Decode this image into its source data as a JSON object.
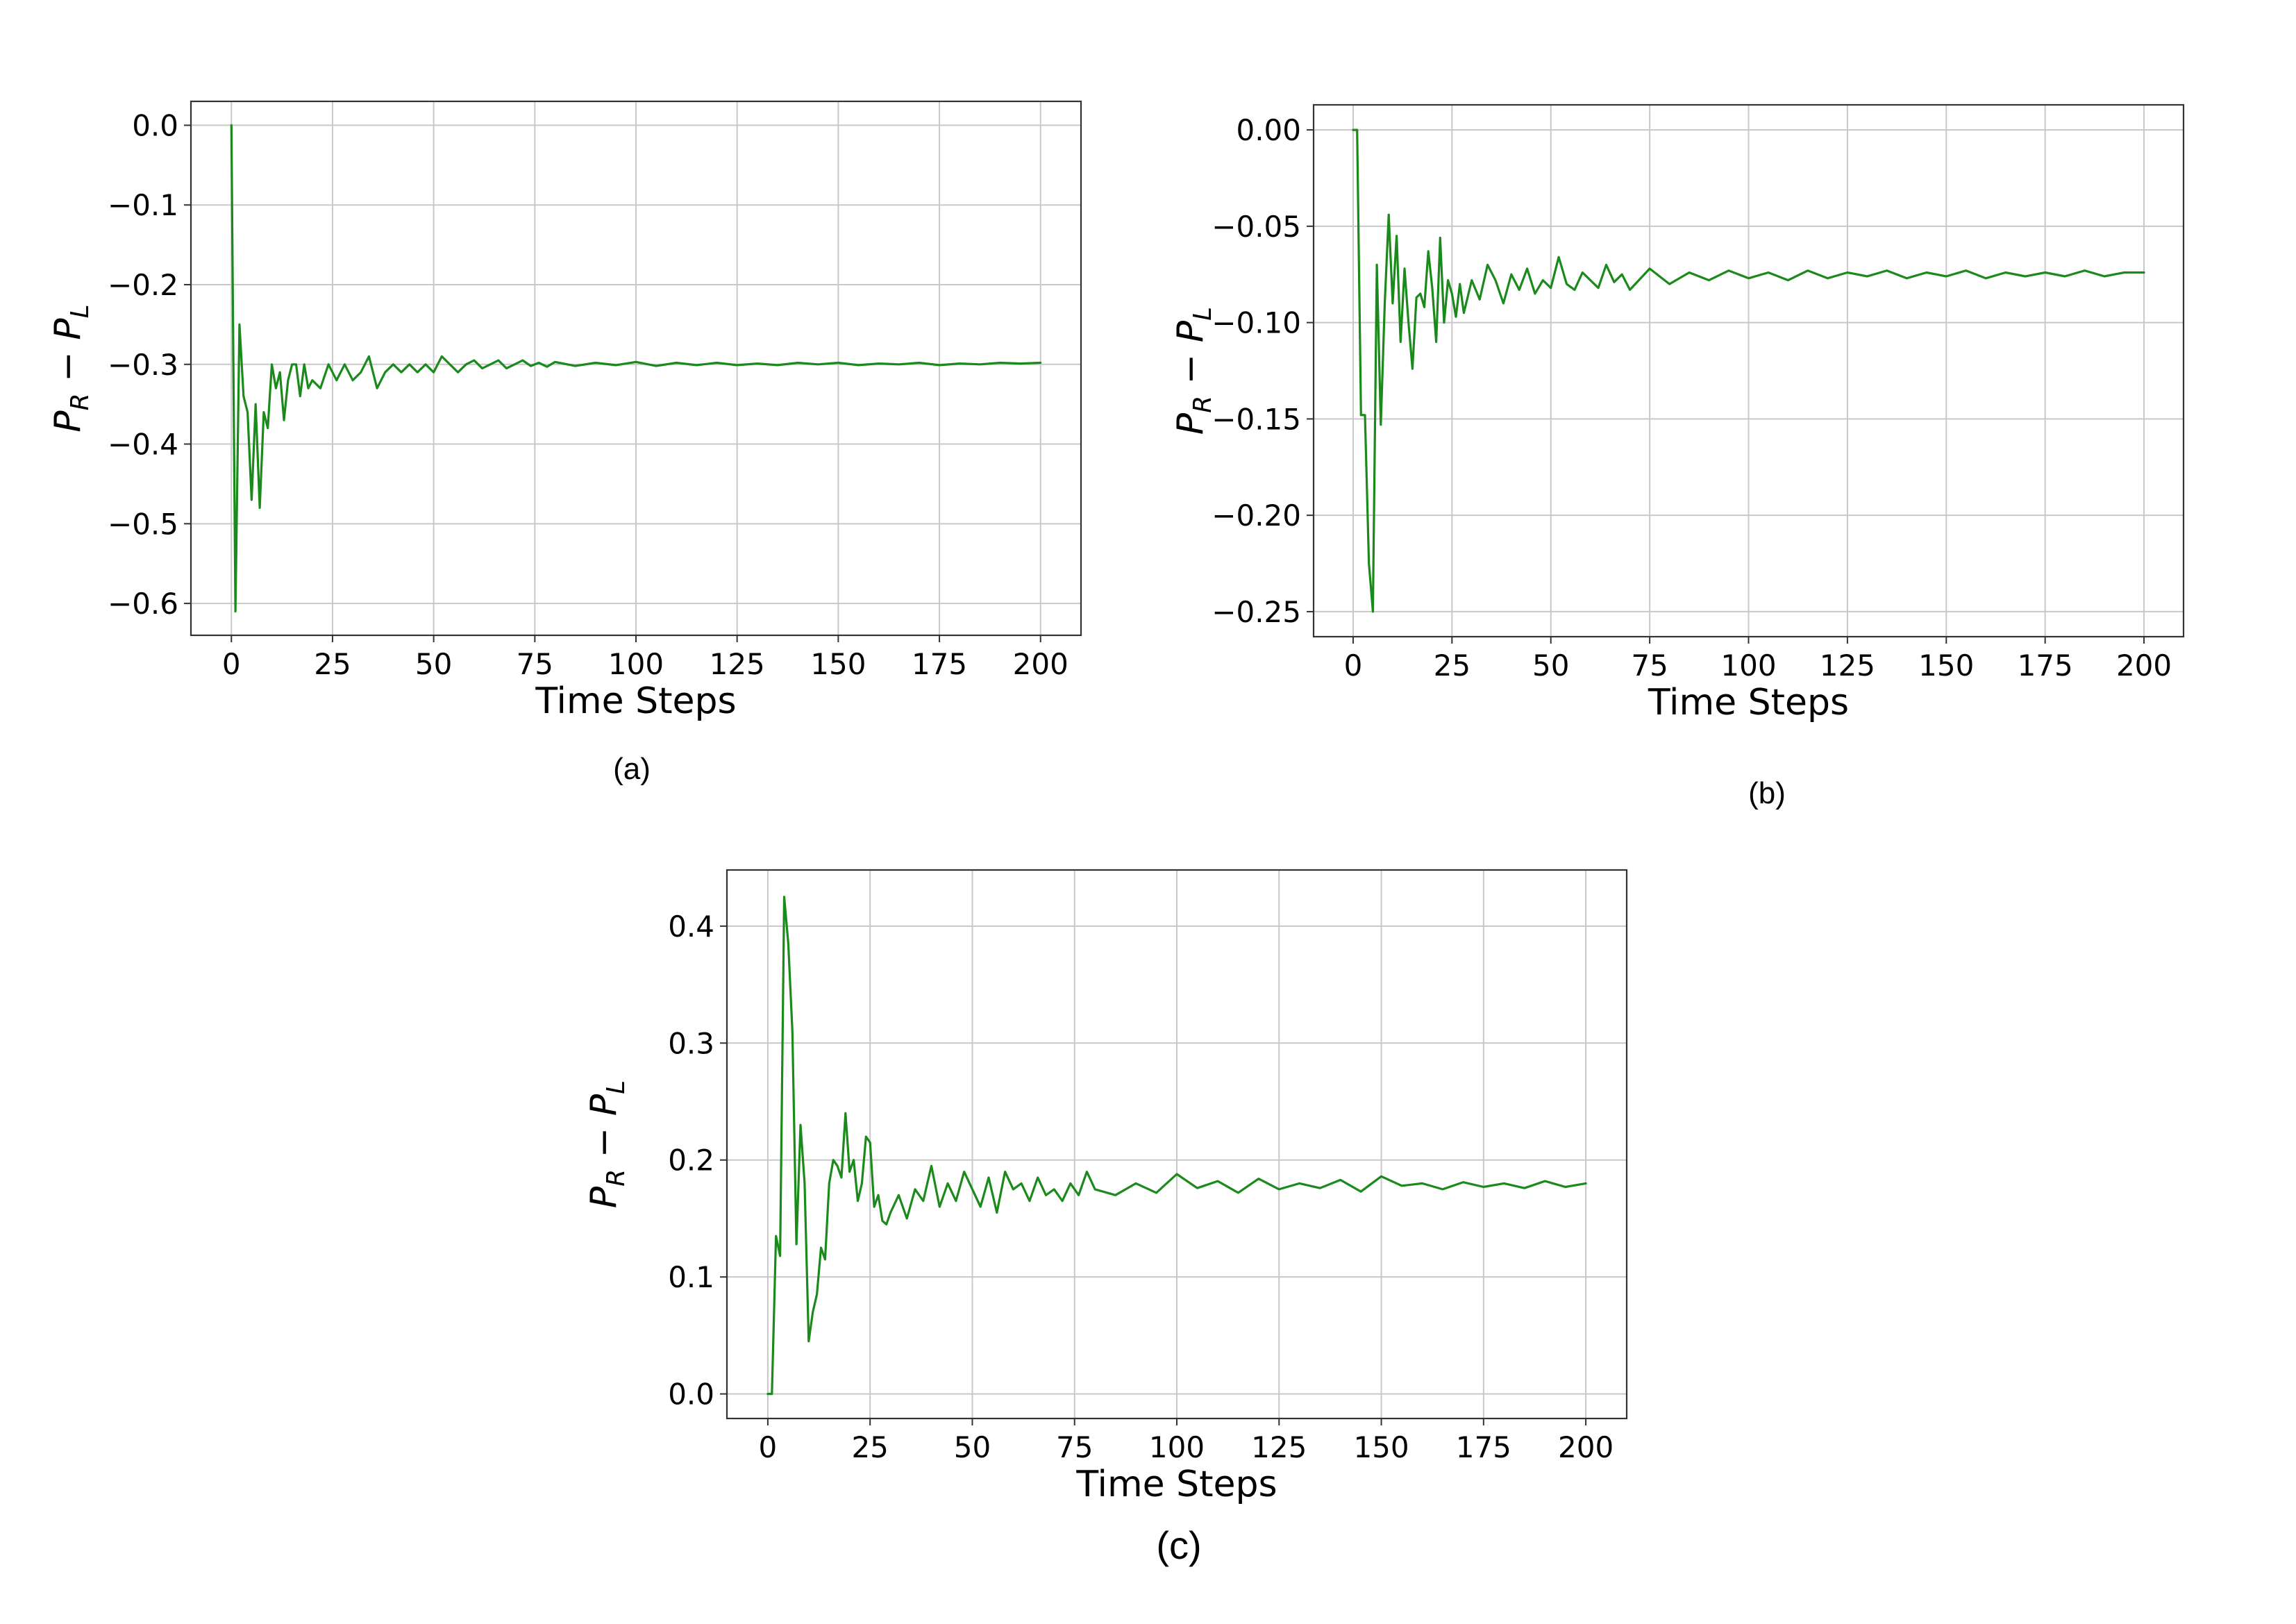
{
  "figure": {
    "line_color": "#1a8a1a",
    "captions": [
      "(a)",
      "(b)",
      "(c)"
    ]
  },
  "chart_data": [
    {
      "type": "line",
      "panel": "a",
      "caption": "(a)",
      "xlabel": "Time Steps",
      "ylabel": {
        "base": "P",
        "sub1": "R",
        "minus": " − ",
        "sub2": "L"
      },
      "xlim": [
        -10,
        210
      ],
      "ylim": [
        -0.64,
        0.03
      ],
      "xticks": [
        0,
        25,
        50,
        75,
        100,
        125,
        150,
        175,
        200
      ],
      "xtick_labels": [
        "0",
        "25",
        "50",
        "75",
        "100",
        "125",
        "150",
        "175",
        "200"
      ],
      "yticks": [
        0.0,
        -0.1,
        -0.2,
        -0.3,
        -0.4,
        -0.5,
        -0.6
      ],
      "ytick_labels": [
        "0.0",
        "−0.1",
        "−0.2",
        "−0.3",
        "−0.4",
        "−0.5",
        "−0.6"
      ],
      "grid": true,
      "series": [
        {
          "color": "#1a8a1a",
          "x": [
            0,
            1,
            2,
            3,
            4,
            5,
            6,
            7,
            8,
            9,
            10,
            11,
            12,
            13,
            14,
            15,
            16,
            17,
            18,
            19,
            20,
            22,
            24,
            26,
            28,
            30,
            32,
            34,
            36,
            38,
            40,
            42,
            44,
            46,
            48,
            50,
            52,
            54,
            56,
            58,
            60,
            62,
            64,
            66,
            68,
            70,
            72,
            74,
            76,
            78,
            80,
            85,
            90,
            95,
            100,
            105,
            110,
            115,
            120,
            125,
            130,
            135,
            140,
            145,
            150,
            155,
            160,
            165,
            170,
            175,
            180,
            185,
            190,
            195,
            200
          ],
          "y": [
            0.0,
            -0.61,
            -0.25,
            -0.34,
            -0.36,
            -0.47,
            -0.35,
            -0.48,
            -0.36,
            -0.38,
            -0.3,
            -0.33,
            -0.31,
            -0.37,
            -0.32,
            -0.3,
            -0.3,
            -0.34,
            -0.3,
            -0.33,
            -0.32,
            -0.33,
            -0.3,
            -0.32,
            -0.3,
            -0.32,
            -0.31,
            -0.29,
            -0.33,
            -0.31,
            -0.3,
            -0.31,
            -0.3,
            -0.31,
            -0.3,
            -0.31,
            -0.29,
            -0.3,
            -0.31,
            -0.3,
            -0.295,
            -0.305,
            -0.3,
            -0.295,
            -0.305,
            -0.3,
            -0.295,
            -0.302,
            -0.298,
            -0.303,
            -0.297,
            -0.302,
            -0.298,
            -0.301,
            -0.297,
            -0.302,
            -0.298,
            -0.301,
            -0.298,
            -0.301,
            -0.299,
            -0.301,
            -0.298,
            -0.3,
            -0.298,
            -0.301,
            -0.299,
            -0.3,
            -0.298,
            -0.301,
            -0.299,
            -0.3,
            -0.298,
            -0.299,
            -0.298
          ]
        }
      ]
    },
    {
      "type": "line",
      "panel": "b",
      "caption": "(b)",
      "xlabel": "Time Steps",
      "ylabel": {
        "base": "P",
        "sub1": "R",
        "minus": " − ",
        "sub2": "L"
      },
      "xlim": [
        -10,
        210
      ],
      "ylim": [
        -0.263,
        0.013
      ],
      "xticks": [
        0,
        25,
        50,
        75,
        100,
        125,
        150,
        175,
        200
      ],
      "xtick_labels": [
        "0",
        "25",
        "50",
        "75",
        "100",
        "125",
        "150",
        "175",
        "200"
      ],
      "yticks": [
        0.0,
        -0.05,
        -0.1,
        -0.15,
        -0.2,
        -0.25
      ],
      "ytick_labels": [
        "0.00",
        "−0.05",
        "−0.10",
        "−0.15",
        "−0.20",
        "−0.25"
      ],
      "grid": true,
      "series": [
        {
          "color": "#1a8a1a",
          "x": [
            0,
            1,
            2,
            3,
            4,
            5,
            6,
            7,
            8,
            9,
            10,
            11,
            12,
            13,
            14,
            15,
            16,
            17,
            18,
            19,
            20,
            21,
            22,
            23,
            24,
            25,
            26,
            27,
            28,
            30,
            32,
            34,
            36,
            38,
            40,
            42,
            44,
            46,
            48,
            50,
            52,
            54,
            56,
            58,
            60,
            62,
            64,
            66,
            68,
            70,
            75,
            80,
            85,
            90,
            95,
            100,
            105,
            110,
            115,
            120,
            125,
            130,
            135,
            140,
            145,
            150,
            155,
            160,
            165,
            170,
            175,
            180,
            185,
            190,
            195,
            200
          ],
          "y": [
            0.0,
            0.0,
            -0.148,
            -0.148,
            -0.225,
            -0.25,
            -0.07,
            -0.153,
            -0.09,
            -0.044,
            -0.09,
            -0.055,
            -0.11,
            -0.072,
            -0.1,
            -0.124,
            -0.087,
            -0.085,
            -0.092,
            -0.063,
            -0.082,
            -0.11,
            -0.056,
            -0.1,
            -0.078,
            -0.085,
            -0.097,
            -0.08,
            -0.095,
            -0.078,
            -0.088,
            -0.07,
            -0.078,
            -0.09,
            -0.075,
            -0.083,
            -0.072,
            -0.085,
            -0.078,
            -0.082,
            -0.066,
            -0.08,
            -0.083,
            -0.074,
            -0.078,
            -0.082,
            -0.07,
            -0.079,
            -0.075,
            -0.083,
            -0.072,
            -0.08,
            -0.074,
            -0.078,
            -0.073,
            -0.077,
            -0.074,
            -0.078,
            -0.073,
            -0.077,
            -0.074,
            -0.076,
            -0.073,
            -0.077,
            -0.074,
            -0.076,
            -0.073,
            -0.077,
            -0.074,
            -0.076,
            -0.074,
            -0.076,
            -0.073,
            -0.076,
            -0.074,
            -0.074
          ]
        }
      ]
    },
    {
      "type": "line",
      "panel": "c",
      "caption": "(c)",
      "xlabel": "Time Steps",
      "ylabel": {
        "base": "P",
        "sub1": "R",
        "minus": " − ",
        "sub2": "L"
      },
      "xlim": [
        -10,
        210
      ],
      "ylim": [
        -0.021,
        0.448
      ],
      "xticks": [
        0,
        25,
        50,
        75,
        100,
        125,
        150,
        175,
        200
      ],
      "xtick_labels": [
        "0",
        "25",
        "50",
        "75",
        "100",
        "125",
        "150",
        "175",
        "200"
      ],
      "yticks": [
        0.0,
        0.1,
        0.2,
        0.3,
        0.4
      ],
      "ytick_labels": [
        "0.0",
        "0.1",
        "0.2",
        "0.3",
        "0.4"
      ],
      "grid": true,
      "series": [
        {
          "color": "#1a8a1a",
          "x": [
            0,
            1,
            2,
            3,
            4,
            5,
            6,
            7,
            8,
            9,
            10,
            11,
            12,
            13,
            14,
            15,
            16,
            17,
            18,
            19,
            20,
            21,
            22,
            23,
            24,
            25,
            26,
            27,
            28,
            29,
            30,
            32,
            34,
            36,
            38,
            40,
            42,
            44,
            46,
            48,
            50,
            52,
            54,
            56,
            58,
            60,
            62,
            64,
            66,
            68,
            70,
            72,
            74,
            76,
            78,
            80,
            85,
            90,
            95,
            100,
            105,
            110,
            115,
            120,
            125,
            130,
            135,
            140,
            145,
            150,
            155,
            160,
            165,
            170,
            175,
            180,
            185,
            190,
            195,
            200
          ],
          "y": [
            0.0,
            0.0,
            0.135,
            0.118,
            0.425,
            0.385,
            0.31,
            0.128,
            0.23,
            0.18,
            0.045,
            0.07,
            0.085,
            0.125,
            0.115,
            0.18,
            0.2,
            0.195,
            0.185,
            0.24,
            0.19,
            0.2,
            0.165,
            0.18,
            0.22,
            0.215,
            0.16,
            0.17,
            0.148,
            0.145,
            0.155,
            0.17,
            0.15,
            0.175,
            0.165,
            0.195,
            0.16,
            0.18,
            0.165,
            0.19,
            0.175,
            0.16,
            0.185,
            0.155,
            0.19,
            0.175,
            0.18,
            0.165,
            0.185,
            0.17,
            0.175,
            0.165,
            0.18,
            0.17,
            0.19,
            0.175,
            0.17,
            0.18,
            0.172,
            0.188,
            0.176,
            0.182,
            0.172,
            0.184,
            0.175,
            0.18,
            0.176,
            0.183,
            0.173,
            0.186,
            0.178,
            0.18,
            0.175,
            0.181,
            0.177,
            0.18,
            0.176,
            0.182,
            0.177,
            0.18
          ]
        }
      ]
    }
  ]
}
